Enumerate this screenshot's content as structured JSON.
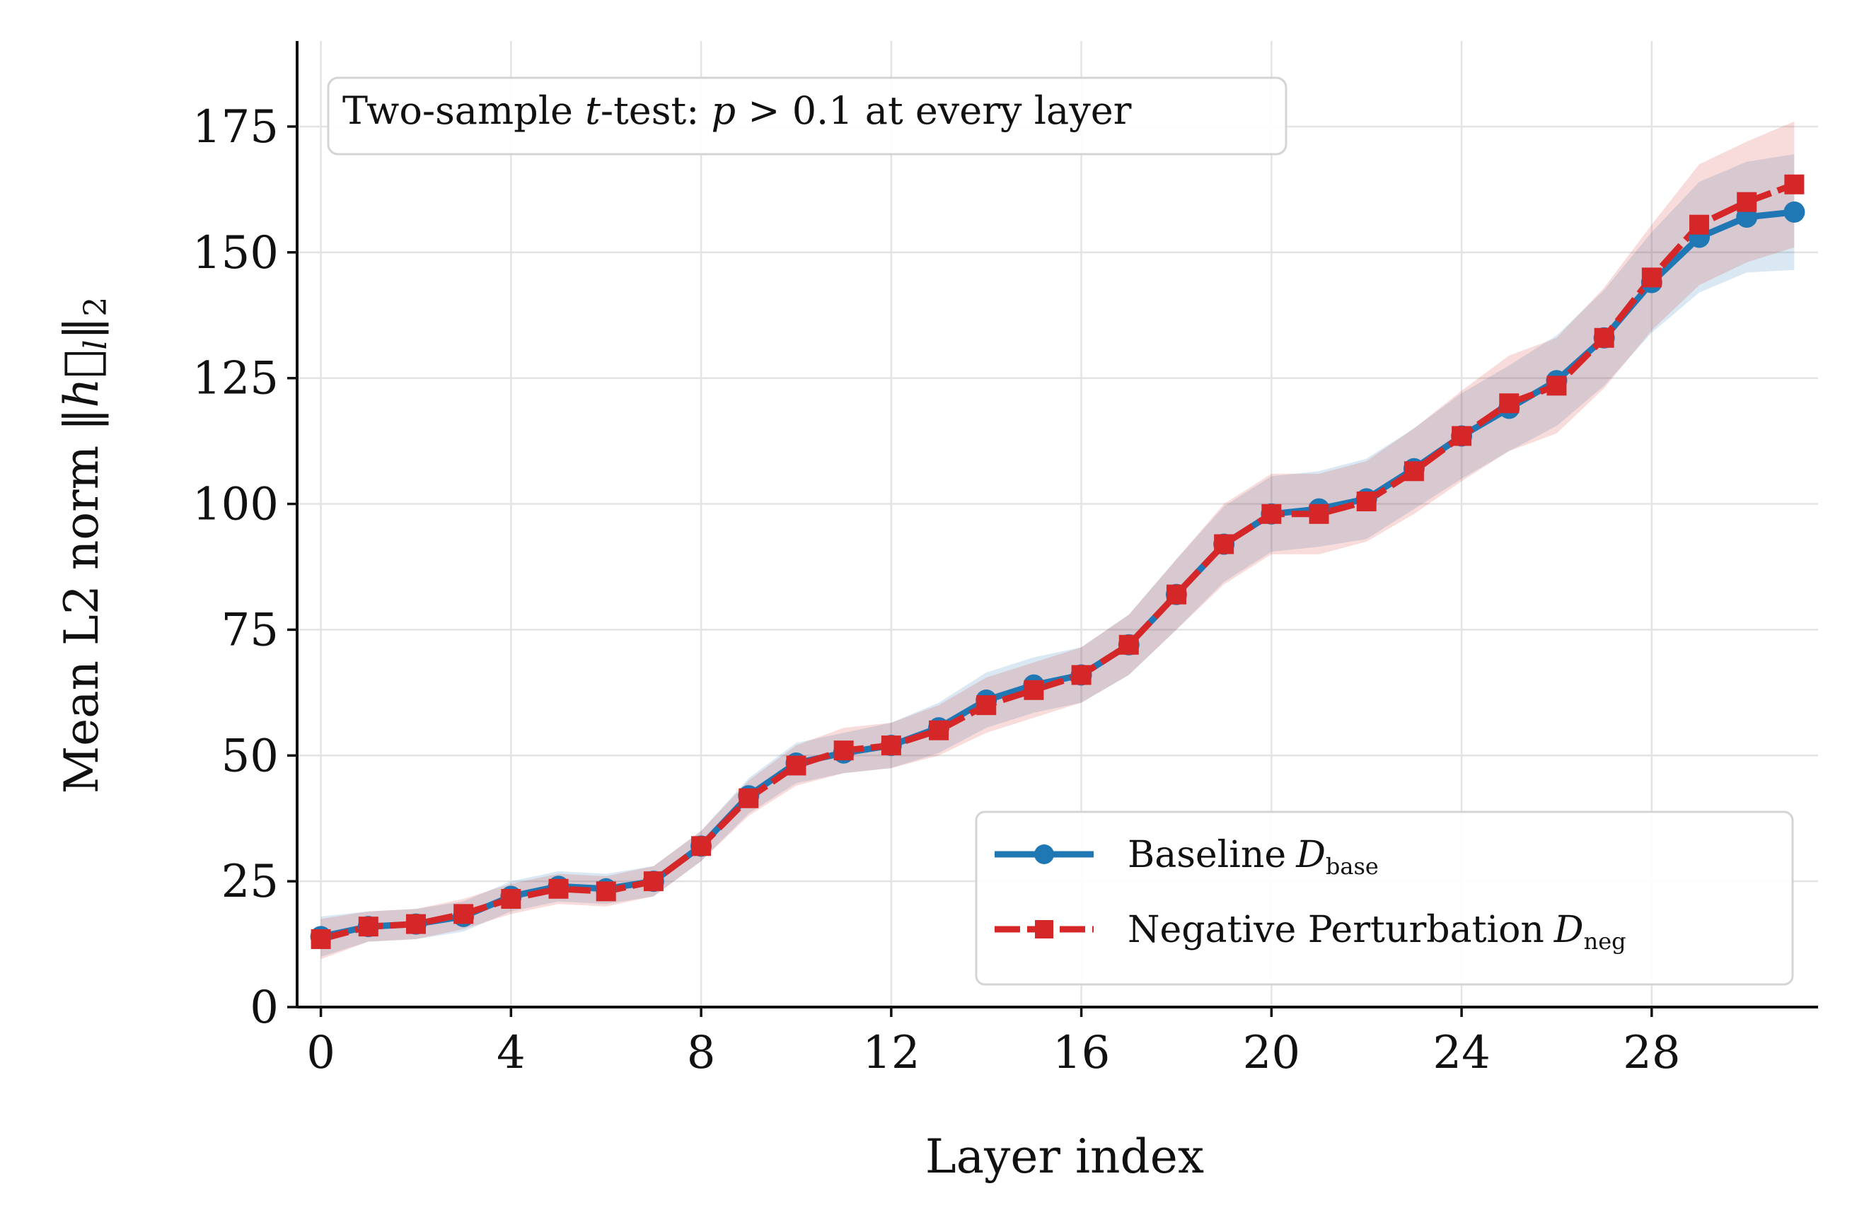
{
  "chart_data": {
    "type": "line",
    "xlabel": "Layer index",
    "ylabel": "Mean L2 norm",
    "ylabel_symbol": "‖h⃗",
    "ylabel_symbol_sub": "l",
    "ylabel_symbol_tail": "‖",
    "ylabel_symbol_sub2": "2",
    "xlim": [
      -0.5,
      31.5
    ],
    "ylim": [
      0,
      192
    ],
    "xticks": [
      0,
      4,
      8,
      12,
      16,
      20,
      24,
      28
    ],
    "yticks": [
      0,
      25,
      50,
      75,
      100,
      125,
      150,
      175
    ],
    "grid": true,
    "legend_position": "lower-right",
    "annotation": {
      "prefix": "Two-sample ",
      "t": "t",
      "middle": "-test: ",
      "p": "p",
      "gt": " > ",
      "value": "0.1",
      "suffix": " at every layer"
    },
    "x": [
      0,
      1,
      2,
      3,
      4,
      5,
      6,
      7,
      8,
      9,
      10,
      11,
      12,
      13,
      14,
      15,
      16,
      17,
      18,
      19,
      20,
      21,
      22,
      23,
      24,
      25,
      26,
      27,
      28,
      29,
      30,
      31
    ],
    "series": [
      {
        "name": "Baseline",
        "name_symbol": "D",
        "name_sub": "base",
        "color": "#1f77b4",
        "marker": "circle",
        "values": [
          14,
          16,
          16.5,
          18,
          22,
          24,
          23.5,
          25,
          32,
          42,
          48.5,
          50.5,
          52,
          55.5,
          61,
          64,
          66,
          72,
          82,
          92,
          98,
          99,
          101,
          107,
          113.5,
          119,
          124.5,
          133,
          144,
          153,
          157,
          158
        ],
        "band": [
          4,
          3,
          3,
          3,
          3,
          3,
          3,
          3,
          3,
          3.5,
          4,
          4,
          4.5,
          5,
          5.5,
          5.5,
          5.5,
          6,
          7,
          7.5,
          7.5,
          7.5,
          8,
          8,
          8.5,
          8.5,
          9,
          9.5,
          10,
          11,
          11,
          11.5
        ]
      },
      {
        "name": "Negative Perturbation",
        "name_symbol": "D",
        "name_sub": "neg",
        "color": "#d62728",
        "marker": "square",
        "values": [
          13.5,
          16,
          16.5,
          18.5,
          21.5,
          23.5,
          23,
          25,
          32,
          41.5,
          48,
          51,
          52,
          55,
          60,
          63,
          66,
          72,
          82,
          92,
          98,
          98,
          100.5,
          106.5,
          113.5,
          120,
          123.5,
          133,
          145,
          155.5,
          160,
          163.5
        ],
        "band": [
          4,
          3,
          3,
          3,
          3,
          3,
          3,
          3,
          3,
          3.5,
          4,
          4.5,
          4.5,
          5,
          5.5,
          5.5,
          5.5,
          6,
          7,
          8,
          8,
          8,
          8,
          8.5,
          9,
          9.5,
          9.5,
          10,
          10.5,
          12,
          12,
          12.5
        ]
      }
    ]
  }
}
